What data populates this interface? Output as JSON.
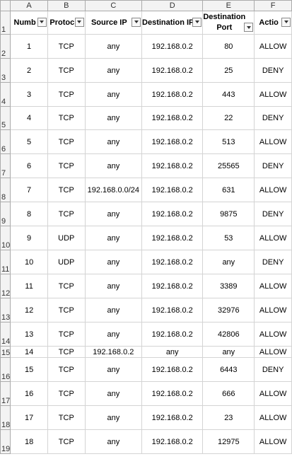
{
  "columns": [
    "A",
    "B",
    "C",
    "D",
    "E",
    "F"
  ],
  "row_numbers": [
    "1",
    "2",
    "3",
    "4",
    "5",
    "6",
    "7",
    "8",
    "9",
    "10",
    "11",
    "12",
    "13",
    "14",
    "15",
    "16",
    "17",
    "18",
    "19"
  ],
  "headers": [
    "Numb",
    "Protoc",
    "Source IP",
    "Destination IP",
    "Destination Port",
    "Actio"
  ],
  "rows": [
    [
      "1",
      "TCP",
      "any",
      "192.168.0.2",
      "80",
      "ALLOW"
    ],
    [
      "2",
      "TCP",
      "any",
      "192.168.0.2",
      "25",
      "DENY"
    ],
    [
      "3",
      "TCP",
      "any",
      "192.168.0.2",
      "443",
      "ALLOW"
    ],
    [
      "4",
      "TCP",
      "any",
      "192.168.0.2",
      "22",
      "DENY"
    ],
    [
      "5",
      "TCP",
      "any",
      "192.168.0.2",
      "513",
      "ALLOW"
    ],
    [
      "6",
      "TCP",
      "any",
      "192.168.0.2",
      "25565",
      "DENY"
    ],
    [
      "7",
      "TCP",
      "192.168.0.0/24",
      "192.168.0.2",
      "631",
      "ALLOW"
    ],
    [
      "8",
      "TCP",
      "any",
      "192.168.0.2",
      "9875",
      "DENY"
    ],
    [
      "9",
      "UDP",
      "any",
      "192.168.0.2",
      "53",
      "ALLOW"
    ],
    [
      "10",
      "UDP",
      "any",
      "192.168.0.2",
      "any",
      "DENY"
    ],
    [
      "11",
      "TCP",
      "any",
      "192.168.0.2",
      "3389",
      "ALLOW"
    ],
    [
      "12",
      "TCP",
      "any",
      "192.168.0.2",
      "32976",
      "ALLOW"
    ],
    [
      "13",
      "TCP",
      "any",
      "192.168.0.2",
      "42806",
      "ALLOW"
    ],
    [
      "14",
      "TCP",
      "192.168.0.2",
      "any",
      "any",
      "ALLOW"
    ],
    [
      "15",
      "TCP",
      "any",
      "192.168.0.2",
      "6443",
      "DENY"
    ],
    [
      "16",
      "TCP",
      "any",
      "192.168.0.2",
      "666",
      "ALLOW"
    ],
    [
      "17",
      "TCP",
      "any",
      "192.168.0.2",
      "23",
      "ALLOW"
    ],
    [
      "18",
      "TCP",
      "any",
      "192.168.0.2",
      "12975",
      "ALLOW"
    ]
  ],
  "icons": {
    "filter": "filter-dropdown-icon"
  }
}
